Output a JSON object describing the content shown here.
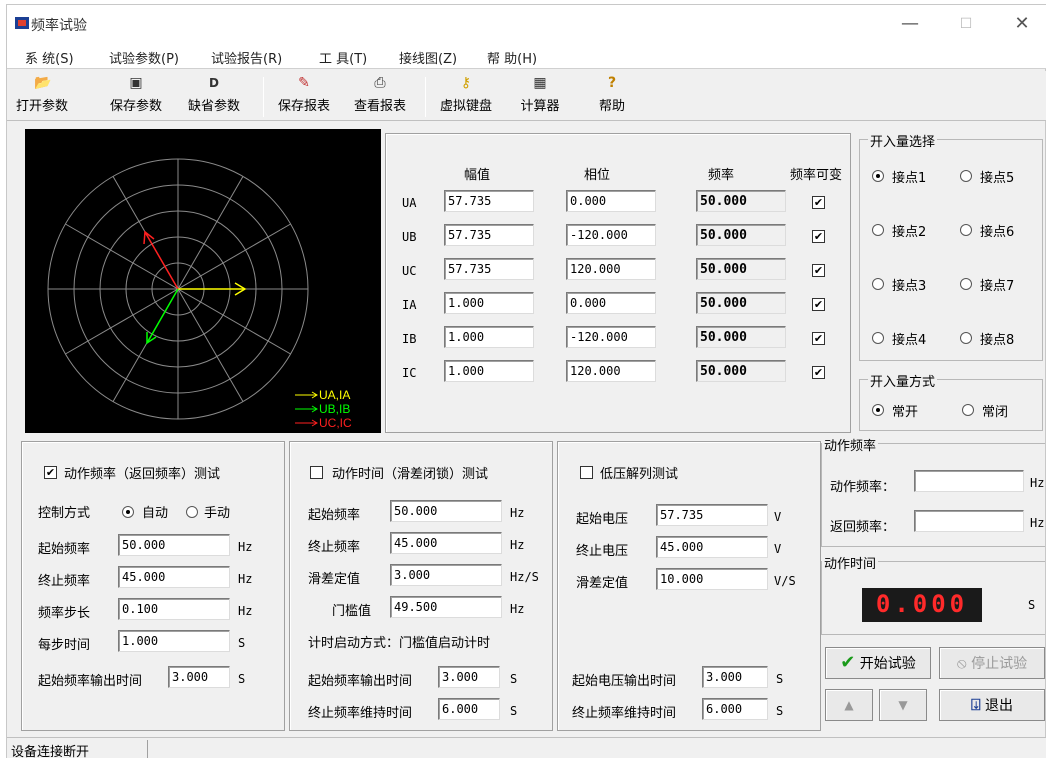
{
  "window": {
    "title": "频率试验"
  },
  "menu": [
    "系 统(S)",
    "试验参数(P)",
    "试验报告(R)",
    "工 具(T)",
    "接线图(Z)",
    "帮 助(H)"
  ],
  "toolbar": {
    "open": "打开参数",
    "save": "保存参数",
    "default": "缺省参数",
    "save_report": "保存报表",
    "view_report": "查看报表",
    "keyboard": "虚拟键盘",
    "calc": "计算器",
    "help": "帮助"
  },
  "phasor": {
    "legend": [
      "UA,IA",
      "UB,IB",
      "UC,IC"
    ],
    "colors": {
      "a": "#ffff00",
      "b": "#00ff00",
      "c": "#ff2020"
    }
  },
  "grid": {
    "headers": {
      "amp": "幅值",
      "phase": "相位",
      "freq": "频率",
      "var": "频率可变"
    },
    "rows": [
      {
        "name": "UA",
        "amp": "57.735",
        "phase": "0.000",
        "freq": "50.000"
      },
      {
        "name": "UB",
        "amp": "57.735",
        "phase": "-120.000",
        "freq": "50.000"
      },
      {
        "name": "UC",
        "amp": "57.735",
        "phase": "120.000",
        "freq": "50.000"
      },
      {
        "name": "IA",
        "amp": "1.000",
        "phase": "0.000",
        "freq": "50.000"
      },
      {
        "name": "IB",
        "amp": "1.000",
        "phase": "-120.000",
        "freq": "50.000"
      },
      {
        "name": "IC",
        "amp": "1.000",
        "phase": "120.000",
        "freq": "50.000"
      }
    ],
    "check": "✔"
  },
  "inputs": {
    "title": "开入量选择",
    "items": [
      "接点1",
      "接点5",
      "接点2",
      "接点6",
      "接点3",
      "接点7",
      "接点4",
      "接点8"
    ]
  },
  "input_mode": {
    "title": "开入量方式",
    "no": "常开",
    "nc": "常闭"
  },
  "freq_test": {
    "title": "动作频率（返回频率）测试",
    "ctrl_label": "控制方式",
    "auto": "自动",
    "manual": "手动",
    "start_label": "起始频率",
    "start": "50.000",
    "end_label": "终止频率",
    "end": "45.000",
    "step_label": "频率步长",
    "step": "0.100",
    "time_label": "每步时间",
    "time": "1.000",
    "out_label": "起始频率输出时间",
    "out": "3.000",
    "unit_hz": "Hz",
    "unit_s": "S"
  },
  "time_test": {
    "title": "动作时间（滑差闭锁）测试",
    "start_label": "起始频率",
    "start": "50.000",
    "end_label": "终止频率",
    "end": "45.000",
    "slip_label": "滑差定值",
    "slip": "3.000",
    "thr_label": "门槛值",
    "thr": "49.500",
    "mode": "计时启动方式：门槛值启动计时",
    "out_label": "起始频率输出时间",
    "out": "3.000",
    "hold_label": "终止频率维持时间",
    "hold": "6.000",
    "unit_hz": "Hz",
    "unit_hzs": "Hz/S",
    "unit_s": "S"
  },
  "lv_test": {
    "title": "低压解列测试",
    "start_label": "起始电压",
    "start": "57.735",
    "end_label": "终止电压",
    "end": "45.000",
    "slip_label": "滑差定值",
    "slip": "10.000",
    "out_label": "起始电压输出时间",
    "out": "3.000",
    "hold_label": "终止频率维持时间",
    "hold": "6.000",
    "unit_v": "V",
    "unit_vs": "V/S",
    "unit_s": "S"
  },
  "action_freq": {
    "title": "动作频率",
    "act_label": "动作频率：",
    "ret_label": "返回频率：",
    "unit": "Hz"
  },
  "action_time": {
    "title": "动作时间",
    "value": "0.000",
    "unit": "S"
  },
  "buttons": {
    "start": "开始试验",
    "stop": "停止试验",
    "up": "▲",
    "down": "▼",
    "exit": "退出"
  },
  "status": {
    "text": "设备连接断开"
  }
}
